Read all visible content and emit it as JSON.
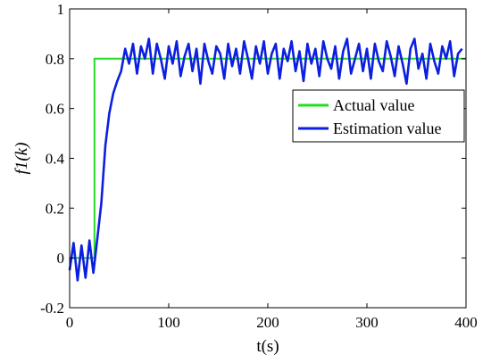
{
  "chart_data": {
    "type": "line",
    "xlabel": "t(s)",
    "ylabel": "f1(k)",
    "xlim": [
      0,
      400
    ],
    "ylim": [
      -0.2,
      1
    ],
    "x_ticks": [
      "0",
      "100",
      "200",
      "300",
      "400"
    ],
    "y_ticks": [
      "-0.2",
      "0",
      "0.2",
      "0.4",
      "0.6",
      "0.8",
      "1"
    ],
    "grid": false,
    "legend_position": "right-middle",
    "series": [
      {
        "name": "Actual value",
        "color": "#22dd22",
        "x": [
          0,
          25,
          25,
          400
        ],
        "y": [
          0,
          0,
          0.8,
          0.8
        ]
      },
      {
        "name": "Estimation value",
        "color": "#0b1fe0",
        "x": [
          0,
          4,
          8,
          12,
          16,
          20,
          24,
          28,
          32,
          36,
          40,
          44,
          48,
          52,
          56,
          60,
          64,
          68,
          72,
          76,
          80,
          84,
          88,
          92,
          96,
          100,
          104,
          108,
          112,
          116,
          120,
          124,
          128,
          132,
          136,
          140,
          144,
          148,
          152,
          156,
          160,
          164,
          168,
          172,
          176,
          180,
          184,
          188,
          192,
          196,
          200,
          204,
          208,
          212,
          216,
          220,
          224,
          228,
          232,
          236,
          240,
          244,
          248,
          252,
          256,
          260,
          264,
          268,
          272,
          276,
          280,
          284,
          288,
          292,
          296,
          300,
          304,
          308,
          312,
          316,
          320,
          324,
          328,
          332,
          336,
          340,
          344,
          348,
          352,
          356,
          360,
          364,
          368,
          372,
          376,
          380,
          384,
          388,
          392,
          396
        ],
        "y": [
          -0.05,
          0.06,
          -0.09,
          0.05,
          -0.08,
          0.07,
          -0.06,
          0.08,
          0.22,
          0.45,
          0.58,
          0.66,
          0.71,
          0.75,
          0.84,
          0.78,
          0.86,
          0.74,
          0.85,
          0.8,
          0.88,
          0.74,
          0.86,
          0.8,
          0.72,
          0.85,
          0.78,
          0.87,
          0.73,
          0.81,
          0.86,
          0.75,
          0.84,
          0.7,
          0.86,
          0.79,
          0.74,
          0.85,
          0.82,
          0.72,
          0.86,
          0.77,
          0.84,
          0.74,
          0.87,
          0.8,
          0.72,
          0.85,
          0.78,
          0.87,
          0.74,
          0.82,
          0.86,
          0.72,
          0.84,
          0.79,
          0.87,
          0.75,
          0.83,
          0.71,
          0.86,
          0.78,
          0.84,
          0.73,
          0.87,
          0.8,
          0.76,
          0.85,
          0.72,
          0.83,
          0.88,
          0.74,
          0.8,
          0.86,
          0.75,
          0.84,
          0.72,
          0.86,
          0.79,
          0.75,
          0.87,
          0.81,
          0.73,
          0.85,
          0.78,
          0.7,
          0.84,
          0.88,
          0.76,
          0.82,
          0.72,
          0.86,
          0.79,
          0.74,
          0.85,
          0.8,
          0.87,
          0.73,
          0.82,
          0.84
        ]
      }
    ]
  }
}
